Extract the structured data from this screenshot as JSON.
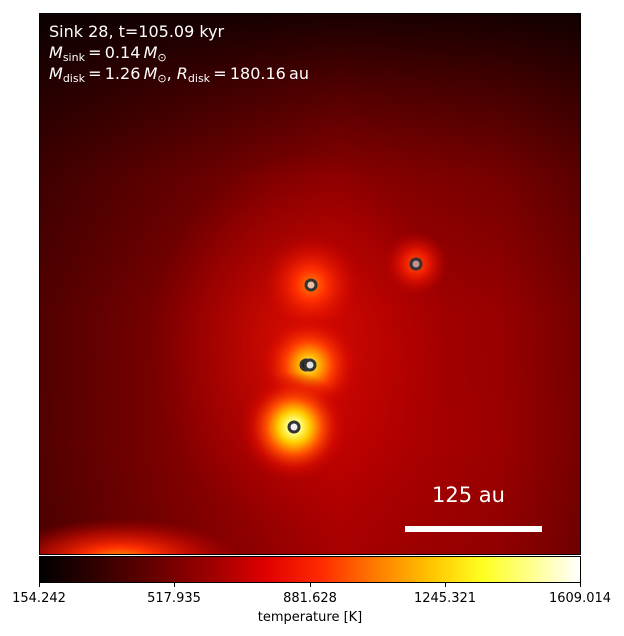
{
  "panel": {
    "sink_line": "Sink 28, t=105.09 kyr",
    "m_sink_value": "0.14",
    "m_disk_value": "1.26",
    "r_disk_value": "180.16",
    "sun_symbol": "⊙",
    "unit_au": "au",
    "sub_sink": "sink",
    "sub_disk": "disk"
  },
  "scale_bar": {
    "label": "125 au"
  },
  "colorbar": {
    "ticks": [
      "154.242",
      "517.935",
      "881.628",
      "1245.321",
      "1609.014"
    ],
    "label": "temperature [K]"
  }
}
